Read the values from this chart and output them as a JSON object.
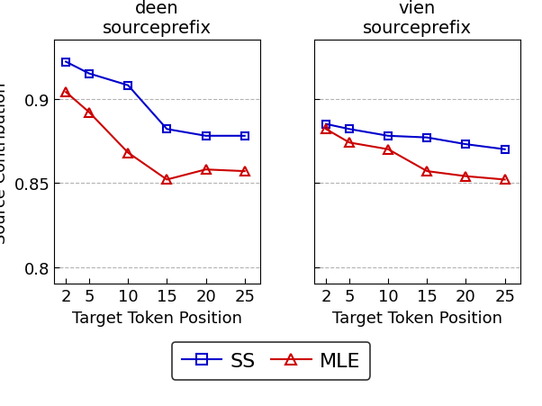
{
  "x_values": [
    2,
    5,
    10,
    15,
    20,
    25
  ],
  "deen_SS": [
    0.922,
    0.915,
    0.908,
    0.882,
    0.878,
    0.878
  ],
  "deen_MLE": [
    0.904,
    0.892,
    0.868,
    0.852,
    0.858,
    0.857
  ],
  "vien_SS": [
    0.885,
    0.882,
    0.878,
    0.877,
    0.873,
    0.87
  ],
  "vien_MLE": [
    0.882,
    0.874,
    0.87,
    0.857,
    0.854,
    0.852
  ],
  "ylim": [
    0.79,
    0.935
  ],
  "yticks": [
    0.8,
    0.85,
    0.9
  ],
  "xticks": [
    2,
    5,
    10,
    15,
    20,
    25
  ],
  "xlabel": "Target Token Position",
  "ylabel": "Source Contribution",
  "title_left": "deen\nsourceprefix",
  "title_right": "vien\nsourceprefix",
  "color_SS": "#0000cc",
  "color_MLE": "#cc0000",
  "legend_SS": "SS",
  "legend_MLE": "MLE",
  "tick_fontsize": 13,
  "label_fontsize": 13,
  "title_fontsize": 14,
  "legend_fontsize": 16
}
